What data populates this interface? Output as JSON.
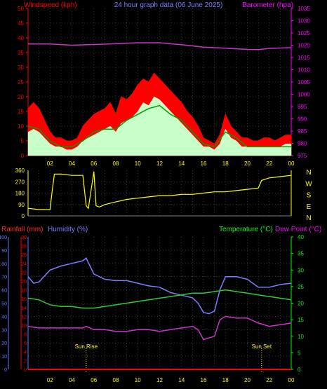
{
  "header": {
    "left_label": "Windspeed (kph)",
    "center_title": "24 hour graph data (06 June 2025)",
    "right_label": "Barometer (hpa)"
  },
  "colors": {
    "background": "#000000",
    "axis_red": "#ff0000",
    "axis_magenta": "#ff00ff",
    "axis_blue": "#5a7cff",
    "axis_green": "#00ff00",
    "axis_yellow": "#ffff00",
    "grid": "#5a5a5a",
    "wind_gust": "#ff0000",
    "wind_speed": "#c8ffc8",
    "wind_avg": "#009f00",
    "wind_dir": "#ffff00",
    "barometer": "#cc33cc",
    "humidity": "#7f7fff",
    "temperature": "#2ecc2e",
    "dew_point": "#cc33cc",
    "rainfall": "#ff0000"
  },
  "chart_data": [
    {
      "type": "line",
      "id": "wind-panel",
      "title": "24 hour graph data (06 June 2025)",
      "ylabel": "Windspeed (kph)",
      "y2label": "Barometer (hpa)",
      "ylim": [
        0,
        50
      ],
      "y2lim": [
        975,
        1035
      ],
      "yticks": [
        0,
        5,
        10,
        15,
        20,
        25,
        30,
        35,
        40,
        45,
        50
      ],
      "y2ticks": [
        975,
        980,
        985,
        990,
        995,
        1000,
        1005,
        1010,
        1015,
        1020,
        1025,
        1030,
        1035
      ],
      "xlim": [
        0,
        24
      ],
      "xtick_labels": [
        "02",
        "04",
        "06",
        "08",
        "10",
        "12",
        "14",
        "16",
        "18",
        "20",
        "22",
        "00"
      ],
      "grid": true,
      "series": [
        {
          "name": "Barometer",
          "axis": "right",
          "x": [
            0,
            2,
            4,
            6,
            8,
            10,
            12,
            14,
            16,
            18,
            20,
            21,
            22,
            24
          ],
          "values": [
            1020.5,
            1020.5,
            1020,
            1020.3,
            1020.6,
            1021,
            1021,
            1020.2,
            1019.2,
            1018.8,
            1018.3,
            1018.2,
            1018.7,
            1019
          ]
        },
        {
          "name": "Gust",
          "axis": "left",
          "x": [
            0,
            0.5,
            1,
            1.5,
            2,
            2.5,
            3,
            3.5,
            4,
            4.5,
            5,
            5.5,
            6,
            6.5,
            7,
            7.5,
            8,
            8.5,
            9,
            9.5,
            10,
            10.5,
            11,
            11.5,
            12,
            12.5,
            13,
            13.5,
            14,
            14.5,
            15,
            15.5,
            16,
            16.5,
            17,
            17.5,
            18,
            18.5,
            19,
            19.5,
            20,
            20.5,
            21,
            21.5,
            22,
            22.5,
            23,
            23.5,
            24
          ],
          "values": [
            16,
            18,
            16,
            12,
            8,
            6,
            6,
            5,
            5,
            6,
            10,
            12,
            14,
            15,
            16,
            18,
            14,
            20,
            19,
            21,
            24,
            26,
            25,
            28,
            26,
            24,
            22,
            20,
            18,
            15,
            13,
            10,
            6,
            5,
            4,
            7,
            14,
            10,
            8,
            6,
            6,
            5,
            5,
            6,
            6,
            5,
            6,
            7,
            7
          ]
        },
        {
          "name": "Wind Speed",
          "axis": "left",
          "x": [
            0,
            0.5,
            1,
            1.5,
            2,
            2.5,
            3,
            3.5,
            4,
            4.5,
            5,
            5.5,
            6,
            6.5,
            7,
            7.5,
            8,
            8.5,
            9,
            9.5,
            10,
            10.5,
            11,
            11.5,
            12,
            12.5,
            13,
            13.5,
            14,
            14.5,
            15,
            15.5,
            16,
            16.5,
            17,
            17.5,
            18,
            18.5,
            19,
            19.5,
            20,
            20.5,
            21,
            21.5,
            22,
            22.5,
            23,
            23.5,
            24
          ],
          "values": [
            8,
            9,
            8,
            6,
            4,
            3,
            3,
            2,
            2,
            3,
            5,
            6,
            7,
            8,
            9,
            10,
            8,
            11,
            12,
            13,
            15,
            18,
            17,
            20,
            19,
            17,
            15,
            13,
            11,
            9,
            7,
            5,
            3,
            3,
            2,
            4,
            9,
            6,
            5,
            3,
            3,
            3,
            3,
            3,
            3,
            3,
            3,
            4,
            4
          ]
        },
        {
          "name": "Average Speed",
          "axis": "left",
          "x": [
            0,
            1,
            2,
            3,
            4,
            5,
            6,
            7,
            8,
            9,
            10,
            11,
            12,
            13,
            14,
            15,
            16,
            17,
            18,
            19,
            20,
            21,
            22,
            23,
            24
          ],
          "values": [
            10,
            9,
            5,
            3,
            3,
            5,
            8,
            9,
            9,
            12,
            14,
            16,
            17,
            14,
            12,
            8,
            4,
            3,
            8,
            6,
            3,
            3,
            3,
            3,
            3
          ]
        }
      ]
    },
    {
      "type": "scatter",
      "id": "direction-panel",
      "ylabel": "",
      "ylim": [
        0,
        360
      ],
      "yticks": [
        0,
        90,
        180,
        270,
        360
      ],
      "compass_labels": [
        "N",
        "W",
        "S",
        "E",
        "N"
      ],
      "xlim": [
        0,
        24
      ],
      "grid": true,
      "series": [
        {
          "name": "Wind Direction",
          "x": [
            0,
            1,
            2,
            2.2,
            2.4,
            3,
            4,
            4.5,
            5,
            5.3,
            5.5,
            6,
            6.2,
            6.5,
            7,
            8,
            9,
            10,
            11,
            12,
            13,
            14,
            15,
            16,
            17,
            18,
            19,
            20,
            21,
            21.3,
            22,
            23,
            24
          ],
          "values": [
            60,
            50,
            50,
            200,
            330,
            330,
            320,
            320,
            320,
            80,
            60,
            350,
            80,
            70,
            90,
            110,
            130,
            140,
            150,
            160,
            160,
            170,
            170,
            180,
            190,
            190,
            200,
            210,
            220,
            280,
            300,
            310,
            320
          ]
        }
      ]
    },
    {
      "type": "line",
      "id": "temp-panel",
      "ylabel": "Rainfall (mm)",
      "y2label_humidity": "Humidity (%)",
      "y3label": "Temperature (°C)",
      "y4label": "Dew Point (°C)",
      "rain_ylim": [
        0,
        30
      ],
      "rain_ticks": [
        0,
        2,
        4,
        6,
        8,
        10,
        12,
        14,
        16,
        18,
        20,
        22,
        24,
        26,
        28,
        30
      ],
      "hum_ylim": [
        0,
        100
      ],
      "hum_ticks": [
        0,
        10,
        20,
        30,
        40,
        50,
        60,
        70,
        80,
        90,
        100
      ],
      "temp_ylim": [
        0,
        40
      ],
      "temp_ticks": [
        0,
        5,
        10,
        15,
        20,
        25,
        30,
        35,
        40
      ],
      "xlim": [
        0,
        24
      ],
      "xtick_labels": [
        "02",
        "04",
        "06",
        "08",
        "10",
        "12",
        "14",
        "16",
        "18",
        "20",
        "22",
        "00"
      ],
      "grid": true,
      "annotations": [
        {
          "label": "Sun Rise",
          "x": 5.3
        },
        {
          "label": "Sun Set",
          "x": 21.3
        }
      ],
      "series": [
        {
          "name": "Humidity",
          "axis": "humidity",
          "x": [
            0,
            0.5,
            1,
            2,
            3,
            4,
            5,
            5.3,
            6,
            7,
            8,
            9,
            10,
            11,
            12,
            13,
            14,
            15,
            15.5,
            16,
            16.5,
            17,
            17.5,
            18,
            19,
            20,
            21,
            22,
            23,
            24
          ],
          "values": [
            70,
            65,
            66,
            75,
            78,
            80,
            82,
            84,
            72,
            68,
            67,
            67,
            65,
            63,
            62,
            58,
            56,
            54,
            50,
            43,
            42,
            44,
            60,
            70,
            70,
            68,
            62,
            62,
            64,
            65
          ]
        },
        {
          "name": "Temperature",
          "axis": "temp",
          "x": [
            0,
            1,
            2,
            3,
            4,
            5,
            6,
            7,
            8,
            9,
            10,
            11,
            12,
            13,
            14,
            15,
            16,
            17,
            18,
            19,
            20,
            21,
            22,
            23,
            24
          ],
          "values": [
            21.5,
            21,
            19.5,
            19,
            19,
            18.5,
            18.5,
            19,
            19.5,
            20,
            20.5,
            21,
            21.5,
            22,
            22.5,
            23,
            23,
            23.5,
            24,
            23.5,
            23,
            22.5,
            22,
            21.5,
            21
          ]
        },
        {
          "name": "Dew Point",
          "axis": "temp",
          "x": [
            0,
            1,
            2,
            3,
            4,
            5,
            5.3,
            6,
            7,
            8,
            9,
            10,
            11,
            12,
            13,
            14,
            15,
            15.5,
            16,
            16.5,
            17,
            17.5,
            18,
            19,
            20,
            21,
            22,
            23,
            24
          ],
          "values": [
            13,
            12.5,
            12.5,
            12.5,
            12.5,
            12.5,
            13,
            12,
            12,
            11.5,
            11.5,
            12,
            12,
            11.5,
            12,
            12.5,
            13,
            12,
            9,
            9.5,
            10,
            15,
            16,
            15.5,
            15.5,
            14,
            13,
            13.5,
            14
          ]
        },
        {
          "name": "Rainfall",
          "axis": "rain",
          "x": [
            0,
            24
          ],
          "values": [
            0,
            0
          ]
        }
      ],
      "labels": {
        "rainfall": "Rainfall (mm)",
        "humidity": "Humidity (%)",
        "temperature": "Temperature (°C)",
        "dew_point": "Dew Point (°C)"
      }
    }
  ]
}
